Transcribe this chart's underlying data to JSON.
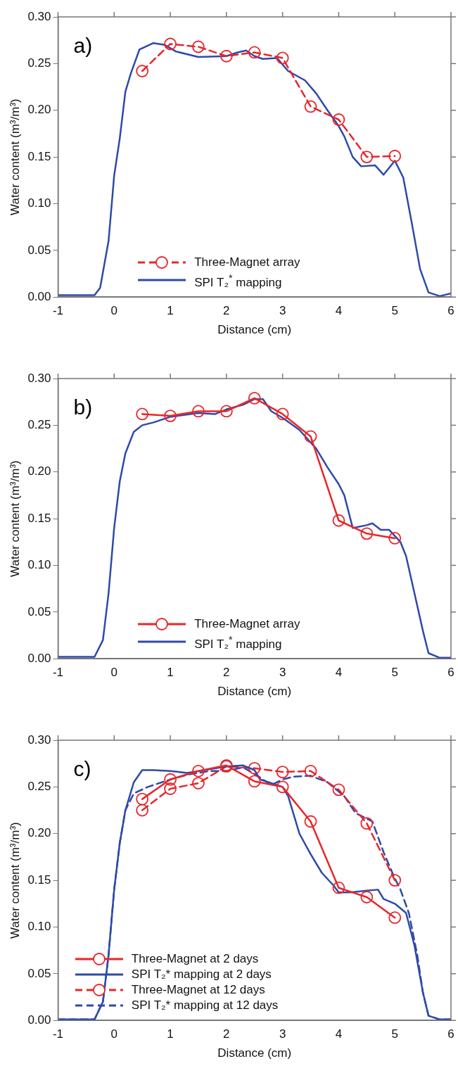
{
  "chart_data": [
    {
      "type": "line",
      "annotations": [
        "a)"
      ],
      "xlabel": "Distance (cm)",
      "ylabel": "Water content (m³/m³)",
      "xlim": [
        -1,
        6
      ],
      "xticks": [
        -1,
        0,
        1,
        2,
        3,
        4,
        5,
        6
      ],
      "ylim": [
        0,
        0.3
      ],
      "yticks": [
        {
          "value": 0,
          "label": "0.00"
        },
        {
          "value": 0.05,
          "label": "0.05"
        },
        {
          "value": 0.1,
          "label": "0.10"
        },
        {
          "value": 0.15,
          "label": "0.15"
        },
        {
          "value": 0.2,
          "label": "0.20"
        },
        {
          "value": 0.25,
          "label": "0.25"
        },
        {
          "value": 0.3,
          "label": "0.30"
        }
      ],
      "grid": false,
      "legend": "bottom",
      "series": [
        {
          "name": "Three-Magnet array",
          "color": "#e8262a",
          "marker": "circle",
          "line_style": "dashed",
          "x": [
            0.5,
            1,
            1.5,
            2,
            2.5,
            3,
            3.5,
            4,
            4.5,
            5
          ],
          "values": [
            0.242,
            0.271,
            0.268,
            0.258,
            0.262,
            0.256,
            0.204,
            0.19,
            0.15,
            0.151
          ]
        },
        {
          "name": "SPI T₂$^{*}$ mapping",
          "color": "#2e4aa8",
          "marker": "none",
          "line_style": "solid",
          "x": [
            -1,
            -0.35,
            -0.25,
            -0.1,
            0,
            0.1,
            0.2,
            0.3,
            0.45,
            0.7,
            0.9,
            1.1,
            1.5,
            2,
            2.2,
            2.35,
            2.5,
            2.65,
            2.9,
            3.1,
            3.4,
            3.6,
            3.8,
            4,
            4.1,
            4.25,
            4.4,
            4.65,
            4.8,
            5,
            5.15,
            5.3,
            5.45,
            5.6,
            5.8,
            6
          ],
          "values": [
            0.002,
            0.002,
            0.01,
            0.06,
            0.13,
            0.17,
            0.22,
            0.24,
            0.265,
            0.272,
            0.27,
            0.263,
            0.257,
            0.258,
            0.262,
            0.264,
            0.258,
            0.255,
            0.256,
            0.242,
            0.232,
            0.218,
            0.2,
            0.183,
            0.172,
            0.15,
            0.14,
            0.141,
            0.131,
            0.146,
            0.128,
            0.08,
            0.03,
            0.005,
            0.001,
            0.004
          ]
        }
      ]
    },
    {
      "type": "line",
      "annotations": [
        "b)"
      ],
      "xlabel": "Distance (cm)",
      "ylabel": "Water content (m³/m³)",
      "xlim": [
        -1,
        6
      ],
      "xticks": [
        -1,
        0,
        1,
        2,
        3,
        4,
        5,
        6
      ],
      "ylim": [
        0,
        0.3
      ],
      "yticks": [
        {
          "value": 0,
          "label": "0.00"
        },
        {
          "value": 0.05,
          "label": "0.05"
        },
        {
          "value": 0.1,
          "label": "0.10"
        },
        {
          "value": 0.15,
          "label": "0.15"
        },
        {
          "value": 0.2,
          "label": "0.20"
        },
        {
          "value": 0.25,
          "label": "0.25"
        },
        {
          "value": 0.3,
          "label": "0.30"
        }
      ],
      "grid": false,
      "legend": "bottom",
      "series": [
        {
          "name": "Three-Magnet array",
          "color": "#e8262a",
          "marker": "circle",
          "line_style": "solid",
          "x": [
            0.5,
            1,
            1.5,
            2,
            2.5,
            3,
            3.5,
            4,
            4.5,
            5
          ],
          "values": [
            0.262,
            0.26,
            0.265,
            0.265,
            0.279,
            0.262,
            0.238,
            0.148,
            0.134,
            0.129
          ]
        },
        {
          "name": "SPI T₂$^{*}$ mapping",
          "color": "#2e4aa8",
          "marker": "none",
          "line_style": "solid",
          "x": [
            -1,
            -0.35,
            -0.2,
            -0.1,
            0,
            0.1,
            0.2,
            0.35,
            0.5,
            0.7,
            1,
            1.5,
            1.8,
            2,
            2.3,
            2.5,
            2.65,
            2.8,
            3,
            3.3,
            3.6,
            3.8,
            4,
            4.1,
            4.25,
            4.5,
            4.6,
            4.75,
            4.9,
            5.1,
            5.2,
            5.35,
            5.5,
            5.6,
            5.8,
            6
          ],
          "values": [
            0.002,
            0.002,
            0.02,
            0.07,
            0.14,
            0.19,
            0.22,
            0.243,
            0.25,
            0.253,
            0.259,
            0.263,
            0.262,
            0.267,
            0.272,
            0.278,
            0.278,
            0.265,
            0.258,
            0.245,
            0.225,
            0.205,
            0.187,
            0.175,
            0.14,
            0.143,
            0.145,
            0.138,
            0.138,
            0.125,
            0.11,
            0.07,
            0.03,
            0.006,
            0.001,
            0.001
          ]
        }
      ]
    },
    {
      "type": "line",
      "annotations": [
        "c)"
      ],
      "xlabel": "Distance (cm)",
      "ylabel": "Water content (m³/m³)",
      "xlim": [
        -1,
        6
      ],
      "xticks": [
        -1,
        0,
        1,
        2,
        3,
        4,
        5,
        6
      ],
      "ylim": [
        0,
        0.3
      ],
      "yticks": [
        {
          "value": 0,
          "label": "0.00"
        },
        {
          "value": 0.05,
          "label": "0.05"
        },
        {
          "value": 0.1,
          "label": "0.10"
        },
        {
          "value": 0.15,
          "label": "0.15"
        },
        {
          "value": 0.2,
          "label": "0.20"
        },
        {
          "value": 0.25,
          "label": "0.25"
        },
        {
          "value": 0.3,
          "label": "0.30"
        }
      ],
      "grid": false,
      "legend": "bottom left",
      "series": [
        {
          "name": "Three-Magnet at 2 days",
          "color": "#e8262a",
          "marker": "circle",
          "line_style": "solid",
          "x": [
            0.5,
            1,
            1.5,
            2,
            2.5,
            3,
            3.5,
            4,
            4.5,
            5
          ],
          "values": [
            0.237,
            0.258,
            0.267,
            0.273,
            0.256,
            0.25,
            0.213,
            0.142,
            0.132,
            0.11
          ]
        },
        {
          "name": "SPI T₂* mapping at 2 days",
          "color": "#2e4aa8",
          "marker": "none",
          "line_style": "solid",
          "x": [
            -1,
            -0.35,
            -0.2,
            -0.1,
            0,
            0.1,
            0.2,
            0.35,
            0.5,
            0.7,
            1,
            1.3,
            1.7,
            2,
            2.3,
            2.5,
            2.6,
            2.8,
            3,
            3.1,
            3.3,
            3.5,
            3.7,
            3.9,
            4,
            4.2,
            4.5,
            4.7,
            4.8,
            5,
            5.2,
            5.35,
            5.5,
            5.6,
            5.8,
            6
          ],
          "values": [
            0.001,
            0.001,
            0.02,
            0.07,
            0.14,
            0.19,
            0.225,
            0.255,
            0.268,
            0.268,
            0.267,
            0.265,
            0.269,
            0.272,
            0.273,
            0.268,
            0.258,
            0.254,
            0.25,
            0.24,
            0.2,
            0.178,
            0.158,
            0.145,
            0.137,
            0.137,
            0.139,
            0.14,
            0.13,
            0.125,
            0.115,
            0.08,
            0.03,
            0.005,
            0.001,
            0.001
          ]
        },
        {
          "name": "Three-Magnet at 12 days",
          "color": "#e8262a",
          "marker": "circle",
          "line_style": "dashed",
          "x": [
            0.5,
            1,
            1.5,
            2,
            2.5,
            3,
            3.5,
            4,
            4.5,
            5
          ],
          "values": [
            0.225,
            0.248,
            0.254,
            0.272,
            0.27,
            0.266,
            0.267,
            0.247,
            0.211,
            0.15
          ]
        },
        {
          "name": "SPI T₂* mapping at 12 days",
          "color": "#2e4aa8",
          "marker": "none",
          "line_style": "dashed",
          "x": [
            -1,
            -0.35,
            -0.2,
            -0.1,
            0,
            0.1,
            0.2,
            0.35,
            0.6,
            1,
            1.3,
            1.7,
            2,
            2.3,
            2.6,
            2.8,
            3,
            3.2,
            3.5,
            3.8,
            4.1,
            4.3,
            4.6,
            4.8,
            5,
            5.1,
            5.25,
            5.4,
            5.5,
            5.6,
            5.8,
            6
          ],
          "values": [
            0.001,
            0.001,
            0.02,
            0.07,
            0.14,
            0.19,
            0.225,
            0.243,
            0.25,
            0.258,
            0.263,
            0.267,
            0.267,
            0.271,
            0.26,
            0.252,
            0.258,
            0.261,
            0.262,
            0.255,
            0.24,
            0.222,
            0.213,
            0.18,
            0.152,
            0.14,
            0.115,
            0.07,
            0.03,
            0.005,
            0.001,
            0.001
          ]
        }
      ]
    }
  ]
}
